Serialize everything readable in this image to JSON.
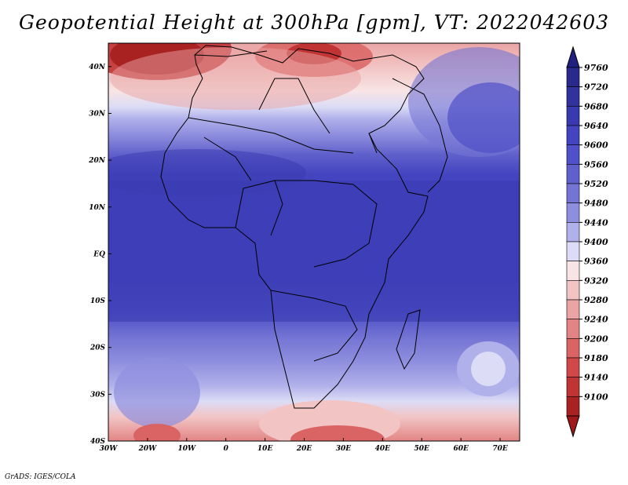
{
  "title": "Geopotential Height at 300hPa [gpm], VT: 2022042603",
  "footer": "GrADS: IGES/COLA",
  "map": {
    "projection": "lat-lon",
    "lon_range": [
      -30,
      75
    ],
    "lat_range": [
      -40,
      45
    ],
    "lon_ticks": [
      {
        "value": -30,
        "label": "30W"
      },
      {
        "value": -20,
        "label": "20W"
      },
      {
        "value": -10,
        "label": "10W"
      },
      {
        "value": 0,
        "label": "0"
      },
      {
        "value": 10,
        "label": "10E"
      },
      {
        "value": 20,
        "label": "20E"
      },
      {
        "value": 30,
        "label": "30E"
      },
      {
        "value": 40,
        "label": "40E"
      },
      {
        "value": 50,
        "label": "50E"
      },
      {
        "value": 60,
        "label": "60E"
      },
      {
        "value": 70,
        "label": "70E"
      }
    ],
    "lat_ticks": [
      {
        "value": 40,
        "label": "40N"
      },
      {
        "value": 30,
        "label": "30N"
      },
      {
        "value": 20,
        "label": "20N"
      },
      {
        "value": 10,
        "label": "10N"
      },
      {
        "value": 0,
        "label": "EQ"
      },
      {
        "value": -10,
        "label": "10S"
      },
      {
        "value": -20,
        "label": "20S"
      },
      {
        "value": -30,
        "label": "30S"
      },
      {
        "value": -40,
        "label": "40S"
      }
    ]
  },
  "colorbar": {
    "levels": [
      {
        "label": "9760",
        "color": "#2a2a8c"
      },
      {
        "label": "9720",
        "color": "#32329c"
      },
      {
        "label": "9680",
        "color": "#3a3ab0"
      },
      {
        "label": "9640",
        "color": "#4444c0"
      },
      {
        "label": "9600",
        "color": "#5050c8"
      },
      {
        "label": "9560",
        "color": "#6060cc"
      },
      {
        "label": "9520",
        "color": "#7474d4"
      },
      {
        "label": "9480",
        "color": "#8e8ede"
      },
      {
        "label": "9440",
        "color": "#b0b0ea"
      },
      {
        "label": "9400",
        "color": "#dcdcf6"
      },
      {
        "label": "9360",
        "color": "#f8e4e4"
      },
      {
        "label": "9320",
        "color": "#f2c4c4"
      },
      {
        "label": "9280",
        "color": "#eaa4a4"
      },
      {
        "label": "9240",
        "color": "#e28484"
      },
      {
        "label": "9200",
        "color": "#da6464"
      },
      {
        "label": "9180",
        "color": "#d04848"
      },
      {
        "label": "9140",
        "color": "#c03434"
      },
      {
        "label": "9100",
        "color": "#a82222"
      }
    ],
    "top_color": "#202080",
    "bottom_color": "#a01818"
  }
}
